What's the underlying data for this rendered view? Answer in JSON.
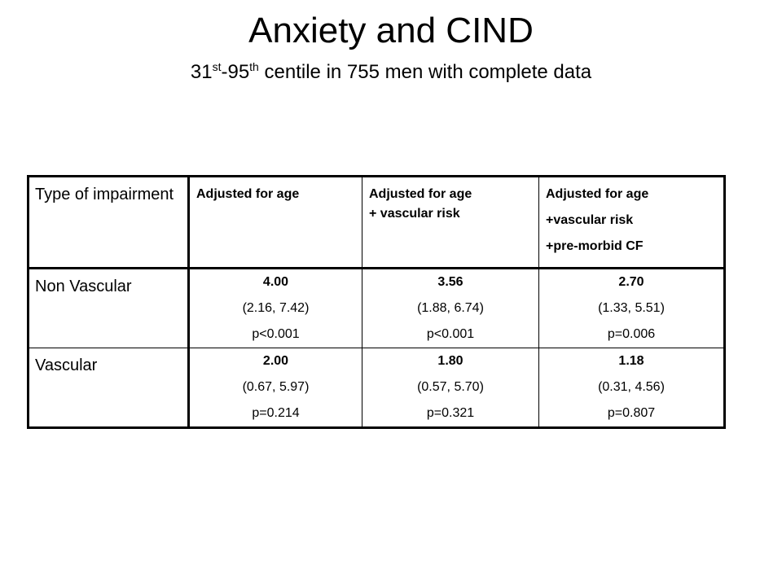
{
  "slide": {
    "title": "Anxiety and CIND",
    "subtitle": {
      "n1": "31",
      "sup1": "st",
      "dash": "-95",
      "sup2": "th",
      "rest": " centile in 755 men with complete data"
    }
  },
  "table": {
    "headers": {
      "type": "Type of impairment",
      "col1": "Adjusted for age",
      "col2_line1": "Adjusted for age",
      "col2_line2": "+ vascular risk",
      "col3_line1": "Adjusted for age",
      "col3_line2": "+vascular risk",
      "col3_line3": "+pre-morbid  CF"
    },
    "rows": [
      {
        "label": "Non Vascular",
        "cells": [
          {
            "estimate": "4.00",
            "ci": "(2.16, 7.42)",
            "p": "p<0.001"
          },
          {
            "estimate": "3.56",
            "ci": "(1.88, 6.74)",
            "p": "p<0.001"
          },
          {
            "estimate": "2.70",
            "ci": "(1.33, 5.51)",
            "p": "p=0.006"
          }
        ]
      },
      {
        "label": "Vascular",
        "cells": [
          {
            "estimate": "2.00",
            "ci": "(0.67, 5.97)",
            "p": "p=0.214"
          },
          {
            "estimate": "1.80",
            "ci": "(0.57, 5.70)",
            "p": "p=0.321"
          },
          {
            "estimate": "1.18",
            "ci": "(0.31, 4.56)",
            "p": "p=0.807"
          }
        ]
      }
    ]
  }
}
